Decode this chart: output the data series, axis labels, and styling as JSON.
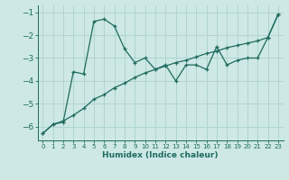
{
  "xlabel": "Humidex (Indice chaleur)",
  "xlim": [
    -0.5,
    23.5
  ],
  "ylim": [
    -6.6,
    -0.7
  ],
  "yticks": [
    -6,
    -5,
    -4,
    -3,
    -2,
    -1
  ],
  "xticks": [
    0,
    1,
    2,
    3,
    4,
    5,
    6,
    7,
    8,
    9,
    10,
    11,
    12,
    13,
    14,
    15,
    16,
    17,
    18,
    19,
    20,
    21,
    22,
    23
  ],
  "bg_color": "#cde8e5",
  "line_color": "#1e6b5e",
  "grid_color": "#b0d5d0",
  "line1_x": [
    0,
    1,
    2,
    3,
    4,
    5,
    6,
    7,
    8,
    9,
    10,
    11,
    12,
    13,
    14,
    15,
    16,
    17,
    18,
    19,
    20,
    21,
    22,
    23
  ],
  "line1_y": [
    -6.3,
    -5.9,
    -5.8,
    -3.6,
    -3.7,
    -1.4,
    -1.3,
    -1.6,
    -2.6,
    -3.2,
    -3.0,
    -3.5,
    -3.3,
    -4.0,
    -3.3,
    -3.3,
    -3.5,
    -2.5,
    -3.3,
    -3.1,
    -3.0,
    -3.0,
    -2.1,
    -1.1
  ],
  "line2_x": [
    0,
    1,
    2,
    3,
    4,
    5,
    6,
    7,
    8,
    9,
    10,
    11,
    12,
    13,
    14,
    15,
    16,
    17,
    18,
    19,
    20,
    21,
    22,
    23
  ],
  "line2_y": [
    -6.3,
    -5.9,
    -5.75,
    -5.5,
    -5.2,
    -4.8,
    -4.6,
    -4.3,
    -4.1,
    -3.85,
    -3.65,
    -3.5,
    -3.35,
    -3.2,
    -3.1,
    -2.95,
    -2.8,
    -2.7,
    -2.55,
    -2.45,
    -2.35,
    -2.25,
    -2.1,
    -1.1
  ]
}
